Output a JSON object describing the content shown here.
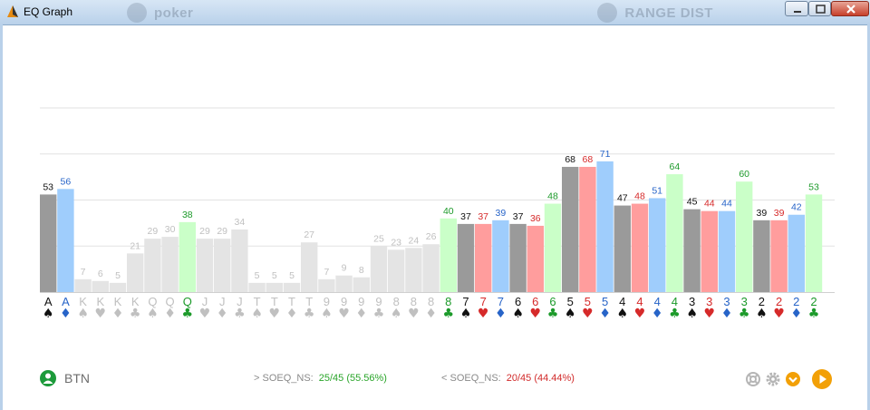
{
  "window": {
    "title": "EQ Graph",
    "background_ghost_text": [
      "poker",
      "RANGE DIST"
    ]
  },
  "footer": {
    "player": "BTN",
    "stat_ge_label": "> SOEQ_NS:",
    "stat_ge_value": "25/45 (55.56%)",
    "stat_lt_label": "< SOEQ_NS:",
    "stat_lt_value": "20/45 (44.44%)",
    "icons": [
      "help-lifebuoy-icon",
      "gear-icon",
      "chevron-down-icon",
      "play-icon"
    ]
  },
  "colors": {
    "green": "#1c9a2a",
    "red": "#d62a2a",
    "blue": "#2764c8",
    "black": "#111111",
    "dim": "#c0c0c0",
    "bar_dim": "#e4e4e4",
    "bar_spade": "#9a9a9a",
    "bar_heart": "#ff9d9d",
    "bar_diamond": "#9fcdfc",
    "bar_club": "#caffc8"
  },
  "chart_data": {
    "type": "bar",
    "ylim": [
      0,
      100
    ],
    "grid": true,
    "bars": [
      {
        "rank": "A",
        "suit": "spade",
        "value": 53,
        "style": "spade"
      },
      {
        "rank": "A",
        "suit": "diamond",
        "value": 56,
        "style": "diamond"
      },
      {
        "rank": "K",
        "suit": "spade",
        "value": 7,
        "style": "dim"
      },
      {
        "rank": "K",
        "suit": "heart",
        "value": 6,
        "style": "dim"
      },
      {
        "rank": "K",
        "suit": "diamond",
        "value": 5,
        "style": "dim"
      },
      {
        "rank": "K",
        "suit": "club",
        "value": 21,
        "style": "dim"
      },
      {
        "rank": "Q",
        "suit": "spade",
        "value": 29,
        "style": "dim"
      },
      {
        "rank": "Q",
        "suit": "diamond",
        "value": 30,
        "style": "dim"
      },
      {
        "rank": "Q",
        "suit": "club",
        "value": 38,
        "style": "club"
      },
      {
        "rank": "J",
        "suit": "heart",
        "value": 29,
        "style": "dim"
      },
      {
        "rank": "J",
        "suit": "diamond",
        "value": 29,
        "style": "dim"
      },
      {
        "rank": "J",
        "suit": "club",
        "value": 34,
        "style": "dim"
      },
      {
        "rank": "T",
        "suit": "spade",
        "value": 5,
        "style": "dim"
      },
      {
        "rank": "T",
        "suit": "heart",
        "value": 5,
        "style": "dim"
      },
      {
        "rank": "T",
        "suit": "diamond",
        "value": 5,
        "style": "dim"
      },
      {
        "rank": "T",
        "suit": "club",
        "value": 27,
        "style": "dim"
      },
      {
        "rank": "9",
        "suit": "spade",
        "value": 7,
        "style": "dim"
      },
      {
        "rank": "9",
        "suit": "heart",
        "value": 9,
        "style": "dim"
      },
      {
        "rank": "9",
        "suit": "diamond",
        "value": 8,
        "style": "dim"
      },
      {
        "rank": "9",
        "suit": "club",
        "value": 25,
        "style": "dim"
      },
      {
        "rank": "8",
        "suit": "spade",
        "value": 23,
        "style": "dim"
      },
      {
        "rank": "8",
        "suit": "heart",
        "value": 24,
        "style": "dim"
      },
      {
        "rank": "8",
        "suit": "diamond",
        "value": 26,
        "style": "dim"
      },
      {
        "rank": "8",
        "suit": "club",
        "value": 40,
        "style": "club"
      },
      {
        "rank": "7",
        "suit": "spade",
        "value": 37,
        "style": "spade"
      },
      {
        "rank": "7",
        "suit": "heart",
        "value": 37,
        "style": "heart"
      },
      {
        "rank": "7",
        "suit": "diamond",
        "value": 39,
        "style": "diamond"
      },
      {
        "rank": "6",
        "suit": "spade",
        "value": 37,
        "style": "spade"
      },
      {
        "rank": "6",
        "suit": "heart",
        "value": 36,
        "style": "heart"
      },
      {
        "rank": "6",
        "suit": "club",
        "value": 48,
        "style": "club"
      },
      {
        "rank": "5",
        "suit": "spade",
        "value": 68,
        "style": "spade"
      },
      {
        "rank": "5",
        "suit": "heart",
        "value": 68,
        "style": "heart"
      },
      {
        "rank": "5",
        "suit": "diamond",
        "value": 71,
        "style": "diamond"
      },
      {
        "rank": "4",
        "suit": "spade",
        "value": 47,
        "style": "spade"
      },
      {
        "rank": "4",
        "suit": "heart",
        "value": 48,
        "style": "heart"
      },
      {
        "rank": "4",
        "suit": "diamond",
        "value": 51,
        "style": "diamond"
      },
      {
        "rank": "4",
        "suit": "club",
        "value": 64,
        "style": "club"
      },
      {
        "rank": "3",
        "suit": "spade",
        "value": 45,
        "style": "spade"
      },
      {
        "rank": "3",
        "suit": "heart",
        "value": 44,
        "style": "heart"
      },
      {
        "rank": "3",
        "suit": "diamond",
        "value": 44,
        "style": "diamond"
      },
      {
        "rank": "3",
        "suit": "club",
        "value": 60,
        "style": "club"
      },
      {
        "rank": "2",
        "suit": "spade",
        "value": 39,
        "style": "spade"
      },
      {
        "rank": "2",
        "suit": "heart",
        "value": 39,
        "style": "heart"
      },
      {
        "rank": "2",
        "suit": "diamond",
        "value": 42,
        "style": "diamond"
      },
      {
        "rank": "2",
        "suit": "club",
        "value": 53,
        "style": "club"
      }
    ]
  }
}
